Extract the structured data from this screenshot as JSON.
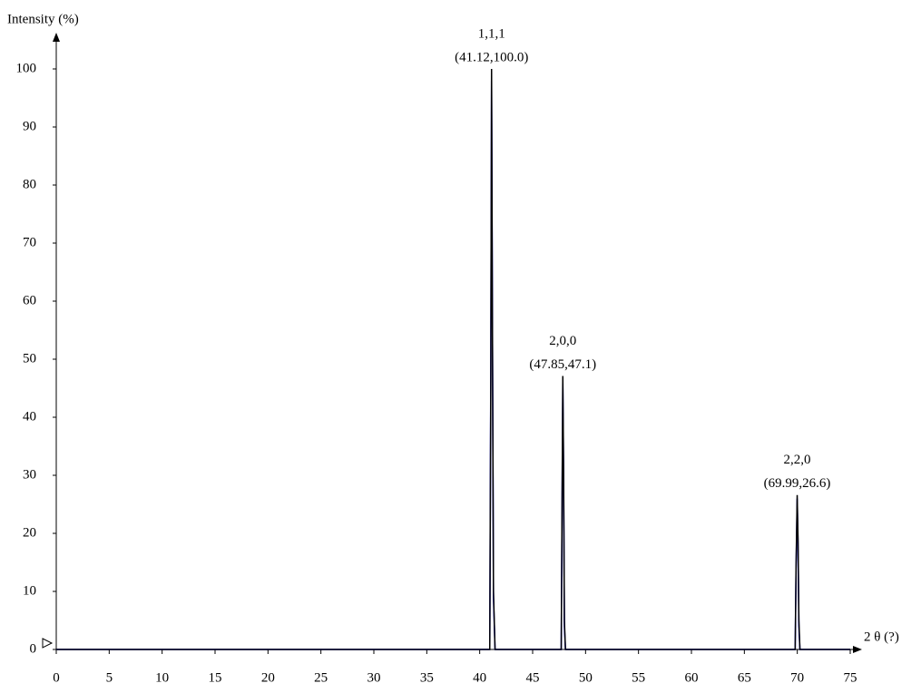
{
  "chart_data": {
    "type": "line",
    "y_label": "Intensity (%)",
    "x_label": "2 θ (?)",
    "x": [
      0,
      40.95,
      41.05,
      41.12,
      41.2,
      41.3,
      41.45,
      47.7,
      47.78,
      47.85,
      47.92,
      48.0,
      48.1,
      69.8,
      69.88,
      69.99,
      70.07,
      70.15,
      70.25,
      75
    ],
    "series": [
      {
        "color": "#0000ff",
        "values": [
          0,
          0,
          50,
          98,
          58,
          9,
          0,
          0,
          24,
          46,
          31,
          4,
          0,
          0,
          13,
          26,
          18,
          4,
          0,
          0
        ]
      },
      {
        "color": "#000000",
        "values": [
          0,
          0,
          48,
          100,
          56,
          10,
          0,
          0,
          25,
          47.1,
          32,
          5,
          0,
          0,
          14,
          26.6,
          19,
          5,
          0,
          0
        ]
      }
    ],
    "annotations": [
      {
        "hkl": "1,1,1",
        "label": "(41.12,100.0)",
        "x": 41.12,
        "y": 100.0
      },
      {
        "hkl": "2,0,0",
        "label": "(47.85,47.1)",
        "x": 47.85,
        "y": 47.1
      },
      {
        "hkl": "2,2,0",
        "label": "(69.99,26.6)",
        "x": 69.99,
        "y": 26.6
      }
    ],
    "xlim": [
      0,
      75
    ],
    "ylim": [
      0,
      100
    ],
    "xticks": [
      0,
      5,
      10,
      15,
      20,
      25,
      30,
      35,
      40,
      45,
      50,
      55,
      60,
      65,
      70,
      75
    ],
    "yticks": [
      0,
      10,
      20,
      30,
      40,
      50,
      60,
      70,
      80,
      90,
      100
    ]
  }
}
